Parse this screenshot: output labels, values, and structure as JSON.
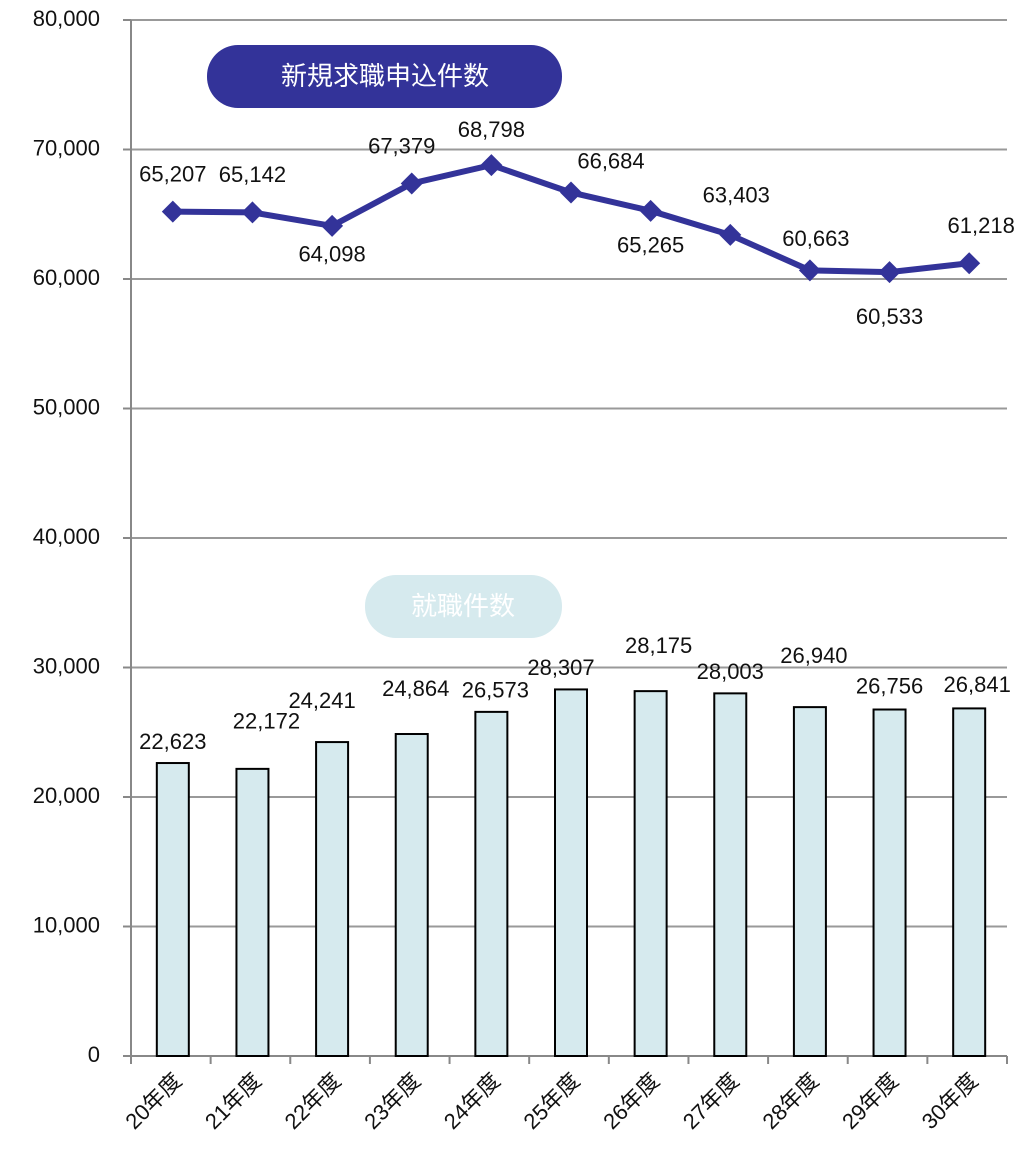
{
  "chart_data": {
    "type": "bar_line",
    "categories": [
      "20年度",
      "21年度",
      "22年度",
      "23年度",
      "24年度",
      "25年度",
      "26年度",
      "27年度",
      "28年度",
      "29年度",
      "30年度"
    ],
    "series": [
      {
        "name": "新規求職申込件数",
        "type": "line",
        "color": "#333399",
        "values": [
          65207,
          65142,
          64098,
          67379,
          68798,
          66684,
          65265,
          63403,
          60663,
          60533,
          61218
        ],
        "value_labels": [
          "65,207",
          "65,142",
          "64,098",
          "67,379",
          "68,798",
          "66,684",
          "65,265",
          "63,403",
          "60,663",
          "60,533",
          "61,218"
        ]
      },
      {
        "name": "就職件数",
        "type": "bar",
        "color": "#d6eaee",
        "values": [
          22623,
          22172,
          24241,
          24864,
          26573,
          28307,
          28175,
          28003,
          26940,
          26756,
          26841
        ],
        "value_labels": [
          "22,623",
          "22,172",
          "24,241",
          "24,864",
          "26,573",
          "28,307",
          "28,175",
          "28,003",
          "26,940",
          "26,756",
          "26,841"
        ]
      }
    ],
    "ylim": [
      0,
      80000
    ],
    "yticks": [
      0,
      {
        "value": 10000,
        "label": "10,000"
      },
      {
        "value": 20000,
        "label": "20,000"
      },
      {
        "value": 30000,
        "label": "30,000"
      },
      {
        "value": 40000,
        "label": "40,000"
      },
      {
        "value": 50000,
        "label": "50,000"
      },
      {
        "value": 60000,
        "label": "60,000"
      },
      {
        "value": 70000,
        "label": "70,000"
      },
      {
        "value": 80000,
        "label": "80,000"
      }
    ],
    "grid": true
  }
}
